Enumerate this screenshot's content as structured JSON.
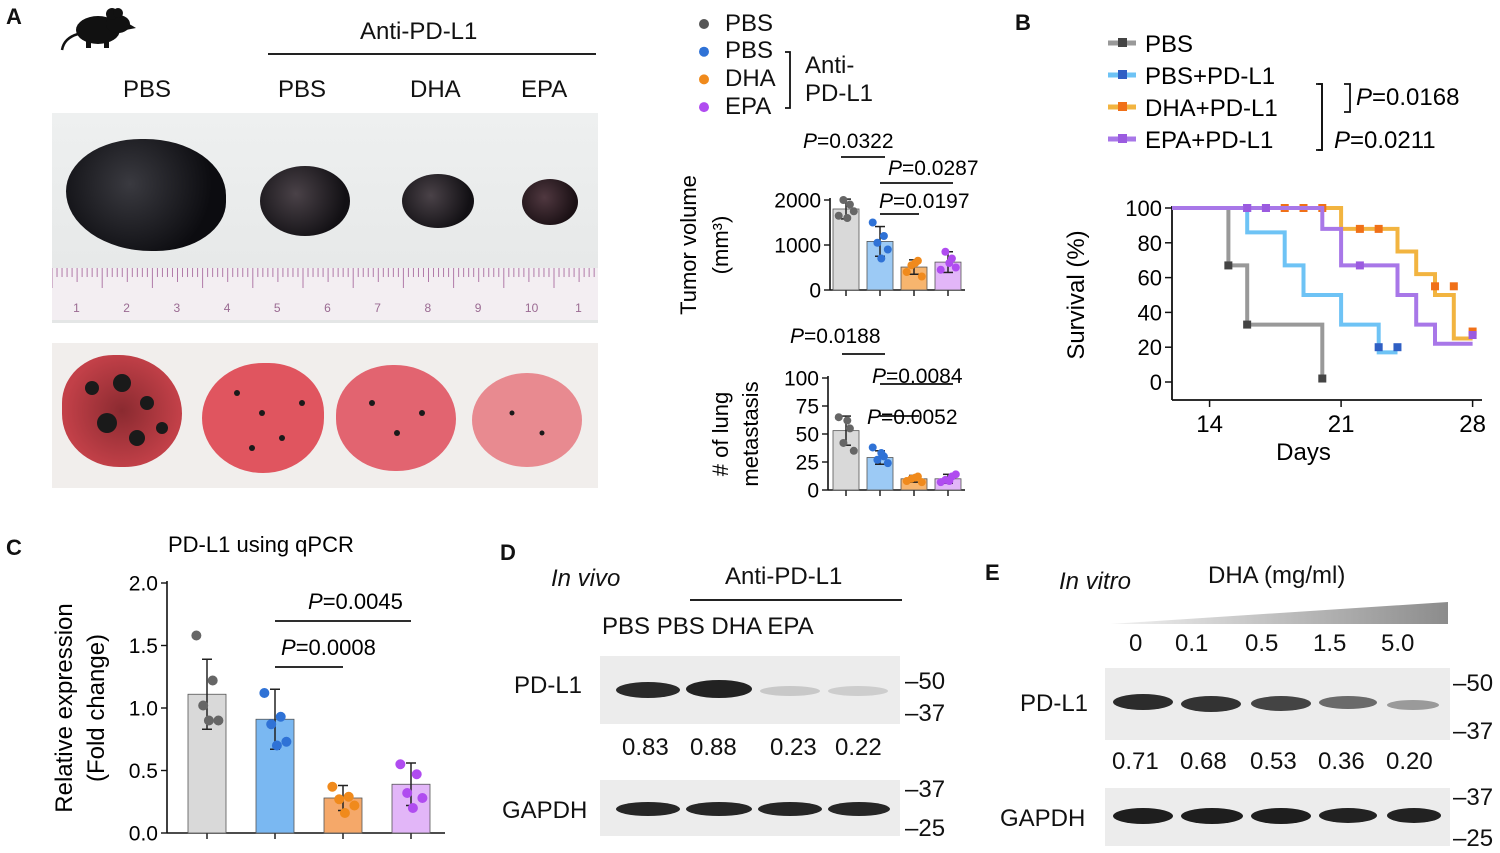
{
  "panels": {
    "a": {
      "letter": "A",
      "treatment_header": "Anti-PD-L1",
      "group_labels": [
        "PBS",
        "PBS",
        "DHA",
        "EPA"
      ],
      "ruler_numbers": [
        "1",
        "2",
        "3",
        "4",
        "5",
        "6",
        "7",
        "8",
        "9",
        "10",
        "1"
      ],
      "legend": {
        "items": [
          {
            "label": "PBS",
            "color": "#555555"
          },
          {
            "label": "PBS",
            "color": "#2f72d6"
          },
          {
            "label": "DHA",
            "color": "#f08a1c"
          },
          {
            "label": "EPA",
            "color": "#b04cf0"
          }
        ],
        "bracket_line1": "Anti-",
        "bracket_line2": "PD-L1"
      }
    },
    "b": {
      "letter": "B"
    },
    "c": {
      "letter": "C"
    },
    "d": {
      "letter": "D",
      "condition": "In vivo",
      "treatment_header": "Anti-PD-L1",
      "lane_labels": "PBS PBS DHA EPA",
      "protein1": "PD-L1",
      "protein2": "GAPDH",
      "quant": [
        "0.83",
        "0.88",
        "0.23",
        "0.22"
      ],
      "markers_top": [
        "–50",
        "–37"
      ],
      "markers_bottom": [
        "–37",
        "–25"
      ]
    },
    "e": {
      "letter": "E",
      "condition": "In vitro",
      "dose_header": "DHA (mg/ml)",
      "doses": [
        "0",
        "0.1",
        "0.5",
        "1.5",
        "5.0"
      ],
      "protein1": "PD-L1",
      "protein2": "GAPDH",
      "quant": [
        "0.71",
        "0.68",
        "0.53",
        "0.36",
        "0.20"
      ],
      "markers_top": [
        "–50",
        "–37"
      ],
      "markers_bottom": [
        "–37",
        "–25"
      ]
    }
  },
  "chart_data": [
    {
      "id": "tumor-volume",
      "type": "bar",
      "ylabel_line1": "Tumor volume",
      "ylabel_line2": "(mm³)",
      "categories": [
        "PBS",
        "PBS",
        "DHA",
        "EPA"
      ],
      "values": [
        1800,
        1080,
        510,
        620
      ],
      "errors": [
        220,
        330,
        160,
        230
      ],
      "points": [
        [
          1650,
          1900,
          2000,
          1750,
          1600
        ],
        [
          1500,
          1200,
          1050,
          900,
          700
        ],
        [
          400,
          650,
          550,
          300,
          600
        ],
        [
          450,
          700,
          850,
          500,
          600
        ]
      ],
      "colors": [
        "#d9d9d9",
        "#9ccaf5",
        "#f7b56e",
        "#e2b6f8"
      ],
      "dot_colors": [
        "#666666",
        "#2f72d6",
        "#f08a1c",
        "#b04cf0"
      ],
      "ylim": [
        0,
        2000
      ],
      "yticks": [
        0,
        1000,
        2000
      ],
      "comparisons": [
        {
          "from": 0,
          "to": 1,
          "label": "P=0.0322"
        },
        {
          "from": 1,
          "to": 3,
          "label": "P=0.0287"
        },
        {
          "from": 1,
          "to": 2,
          "label": "P=0.0197"
        }
      ]
    },
    {
      "id": "lung-metastasis",
      "type": "bar",
      "ylabel_line1": "# of lung",
      "ylabel_line2": "metastasis",
      "categories": [
        "PBS",
        "PBS",
        "DHA",
        "EPA"
      ],
      "values": [
        53,
        29,
        10,
        10
      ],
      "errors": [
        13,
        6,
        3,
        4
      ],
      "points": [
        [
          65,
          55,
          42,
          35,
          62
        ],
        [
          38,
          30,
          27,
          24,
          33
        ],
        [
          8,
          12,
          10,
          7,
          11
        ],
        [
          7,
          12,
          9,
          14,
          8
        ]
      ],
      "colors": [
        "#d9d9d9",
        "#9ccaf5",
        "#f7b56e",
        "#e2b6f8"
      ],
      "dot_colors": [
        "#666666",
        "#2f72d6",
        "#f08a1c",
        "#b04cf0"
      ],
      "ylim": [
        0,
        100
      ],
      "yticks": [
        0,
        25,
        50,
        75,
        100
      ],
      "comparisons": [
        {
          "from": 0,
          "to": 1,
          "label": "P=0.0188"
        },
        {
          "from": 1,
          "to": 3,
          "label": "P=0.0084"
        },
        {
          "from": 1,
          "to": 2,
          "label": "P=0.0052"
        }
      ]
    },
    {
      "id": "survival",
      "type": "line",
      "xlabel": "Days",
      "ylabel": "Survival (%)",
      "xlim": [
        12,
        28.5
      ],
      "xticks": [
        14,
        21,
        28
      ],
      "ylim": [
        0,
        100
      ],
      "yticks": [
        0,
        20,
        40,
        60,
        80,
        100
      ],
      "series": [
        {
          "name": "PBS",
          "color": "#999999",
          "marker": "#444444",
          "steps": [
            [
              12,
              100
            ],
            [
              15,
              100
            ],
            [
              15,
              67
            ],
            [
              16,
              67
            ],
            [
              16,
              33
            ],
            [
              20,
              33
            ],
            [
              20,
              0
            ]
          ],
          "censor": [
            [
              15,
              67
            ],
            [
              16,
              33
            ],
            [
              20,
              2
            ]
          ]
        },
        {
          "name": "PBS+PD-L1",
          "color": "#6ec3f5",
          "marker": "#2f5fc4",
          "steps": [
            [
              12,
              100
            ],
            [
              16,
              100
            ],
            [
              16,
              86
            ],
            [
              18,
              86
            ],
            [
              18,
              67
            ],
            [
              19,
              67
            ],
            [
              19,
              50
            ],
            [
              21,
              50
            ],
            [
              21,
              33
            ],
            [
              23,
              33
            ],
            [
              23,
              17
            ],
            [
              24,
              17
            ]
          ],
          "censor": [
            [
              16,
              100
            ],
            [
              23,
              20
            ],
            [
              24,
              20
            ]
          ]
        },
        {
          "name": "DHA+PD-L1",
          "color": "#f2b440",
          "marker": "#f07018",
          "steps": [
            [
              12,
              100
            ],
            [
              21,
              100
            ],
            [
              21,
              88
            ],
            [
              24,
              88
            ],
            [
              24,
              75
            ],
            [
              25,
              75
            ],
            [
              25,
              62
            ],
            [
              26,
              62
            ],
            [
              26,
              50
            ],
            [
              27,
              50
            ],
            [
              27,
              25
            ],
            [
              28,
              25
            ]
          ],
          "censor": [
            [
              17,
              100
            ],
            [
              18,
              100
            ],
            [
              19,
              100
            ],
            [
              20,
              100
            ],
            [
              22,
              88
            ],
            [
              23,
              88
            ],
            [
              26,
              55
            ],
            [
              27,
              55
            ],
            [
              28,
              29
            ]
          ]
        },
        {
          "name": "EPA+PD-L1",
          "color": "#a877e8",
          "marker": "#9b5be0",
          "steps": [
            [
              12,
              100
            ],
            [
              20,
              100
            ],
            [
              20,
              88
            ],
            [
              21,
              88
            ],
            [
              21,
              67
            ],
            [
              24,
              67
            ],
            [
              24,
              50
            ],
            [
              25,
              50
            ],
            [
              25,
              33
            ],
            [
              26,
              33
            ],
            [
              26,
              22
            ],
            [
              28,
              22
            ]
          ],
          "censor": [
            [
              16,
              100
            ],
            [
              17,
              100
            ],
            [
              22,
              67
            ],
            [
              28,
              27
            ]
          ]
        }
      ],
      "stats": [
        {
          "label": "P=0.0168"
        },
        {
          "label": "P=0.0211"
        }
      ]
    },
    {
      "id": "pdl1-qpcr",
      "type": "bar",
      "title": "PD-L1 using qPCR",
      "ylabel_line1": "Relative expression",
      "ylabel_line2": "(Fold change)",
      "categories": [
        "PBS",
        "PBS",
        "DHA",
        "EPA"
      ],
      "values": [
        1.11,
        0.91,
        0.28,
        0.39
      ],
      "errors": [
        0.28,
        0.24,
        0.1,
        0.17
      ],
      "points": [
        [
          1.58,
          1.22,
          1.02,
          0.9,
          0.9
        ],
        [
          1.12,
          0.93,
          0.87,
          0.73,
          0.7
        ],
        [
          0.37,
          0.29,
          0.27,
          0.22,
          0.16
        ],
        [
          0.55,
          0.47,
          0.32,
          0.28,
          0.2
        ]
      ],
      "colors": [
        "#d9d9d9",
        "#7ab8f2",
        "#f5a869",
        "#e2b6f8"
      ],
      "dot_colors": [
        "#666666",
        "#2f72d6",
        "#f08a1c",
        "#b04cf0"
      ],
      "ylim": [
        0,
        2.0
      ],
      "yticks": [
        "0.0",
        "0.5",
        "1.0",
        "1.5",
        "2.0"
      ],
      "comparisons": [
        {
          "from": 1,
          "to": 2,
          "label": "P=0.0008"
        },
        {
          "from": 1,
          "to": 3,
          "label": "P=0.0045"
        }
      ]
    }
  ]
}
